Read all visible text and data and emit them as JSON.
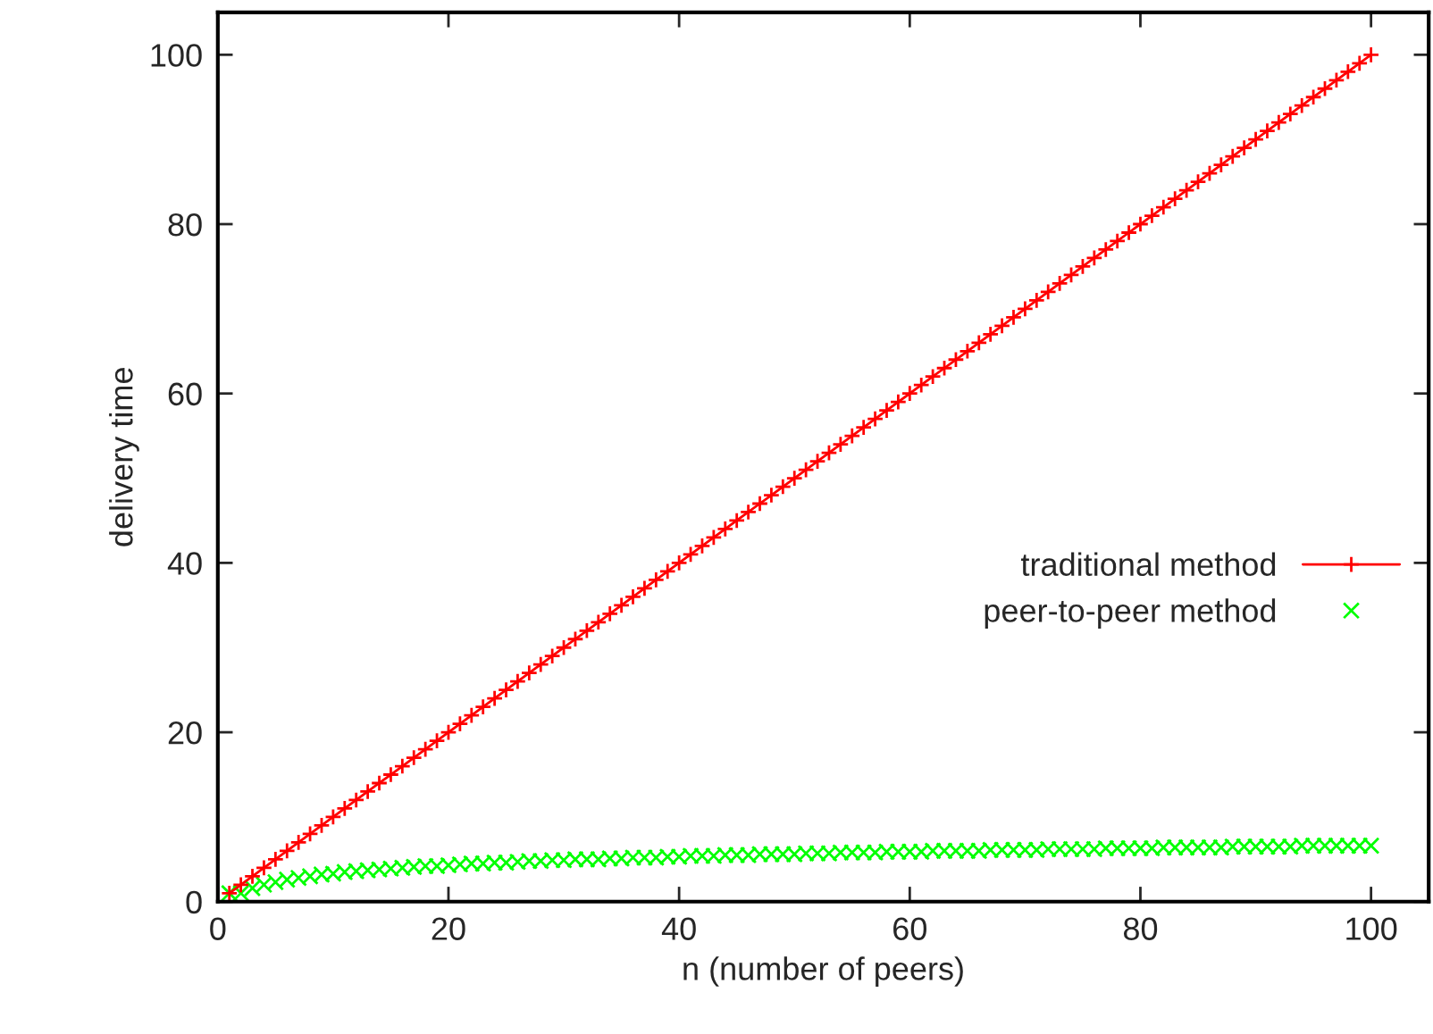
{
  "chart_data": {
    "type": "line",
    "xlabel": "n (number of peers)",
    "ylabel": "delivery time",
    "x": [
      1,
      2,
      3,
      4,
      5,
      6,
      7,
      8,
      9,
      10,
      11,
      12,
      13,
      14,
      15,
      16,
      17,
      18,
      19,
      20,
      21,
      22,
      23,
      24,
      25,
      26,
      27,
      28,
      29,
      30,
      31,
      32,
      33,
      34,
      35,
      36,
      37,
      38,
      39,
      40,
      41,
      42,
      43,
      44,
      45,
      46,
      47,
      48,
      49,
      50,
      51,
      52,
      53,
      54,
      55,
      56,
      57,
      58,
      59,
      60,
      61,
      62,
      63,
      64,
      65,
      66,
      67,
      68,
      69,
      70,
      71,
      72,
      73,
      74,
      75,
      76,
      77,
      78,
      79,
      80,
      81,
      82,
      83,
      84,
      85,
      86,
      87,
      88,
      89,
      90,
      91,
      92,
      93,
      94,
      95,
      96,
      97,
      98,
      99,
      100
    ],
    "series": [
      {
        "name": "traditional method",
        "color": "#ff0000",
        "marker": "plus",
        "line_style": "solid",
        "values": [
          1,
          2,
          3,
          4,
          5,
          6,
          7,
          8,
          9,
          10,
          11,
          12,
          13,
          14,
          15,
          16,
          17,
          18,
          19,
          20,
          21,
          22,
          23,
          24,
          25,
          26,
          27,
          28,
          29,
          30,
          31,
          32,
          33,
          34,
          35,
          36,
          37,
          38,
          39,
          40,
          41,
          42,
          43,
          44,
          45,
          46,
          47,
          48,
          49,
          50,
          51,
          52,
          53,
          54,
          55,
          56,
          57,
          58,
          59,
          60,
          61,
          62,
          63,
          64,
          65,
          66,
          67,
          68,
          69,
          70,
          71,
          72,
          73,
          74,
          75,
          76,
          77,
          78,
          79,
          80,
          81,
          82,
          83,
          84,
          85,
          86,
          87,
          88,
          89,
          90,
          91,
          92,
          93,
          94,
          95,
          96,
          97,
          98,
          99,
          100
        ]
      },
      {
        "name": "peer-to-peer method",
        "type": "scatter",
        "color": "#00ff00",
        "marker": "cross",
        "values": [
          1.0,
          1.0,
          1.6,
          2.0,
          2.3,
          2.6,
          2.8,
          3.0,
          3.2,
          3.3,
          3.5,
          3.6,
          3.7,
          3.8,
          3.9,
          4.0,
          4.1,
          4.2,
          4.2,
          4.3,
          4.4,
          4.5,
          4.5,
          4.6,
          4.6,
          4.7,
          4.8,
          4.8,
          4.9,
          4.9,
          5.0,
          5.0,
          5.0,
          5.1,
          5.1,
          5.2,
          5.2,
          5.2,
          5.3,
          5.3,
          5.4,
          5.4,
          5.4,
          5.5,
          5.5,
          5.5,
          5.6,
          5.6,
          5.6,
          5.6,
          5.7,
          5.7,
          5.7,
          5.8,
          5.8,
          5.8,
          5.8,
          5.9,
          5.9,
          5.9,
          5.9,
          6.0,
          6.0,
          6.0,
          6.0,
          6.0,
          6.1,
          6.1,
          6.1,
          6.1,
          6.1,
          6.2,
          6.2,
          6.2,
          6.2,
          6.2,
          6.3,
          6.3,
          6.3,
          6.3,
          6.3,
          6.4,
          6.4,
          6.4,
          6.4,
          6.4,
          6.4,
          6.5,
          6.5,
          6.5,
          6.5,
          6.5,
          6.5,
          6.6,
          6.6,
          6.6,
          6.6,
          6.6,
          6.6,
          6.6
        ]
      }
    ],
    "xlim": [
      0,
      105
    ],
    "xticks": [
      0,
      20,
      40,
      60,
      80,
      100
    ],
    "ylim": [
      0,
      105
    ],
    "yticks": [
      0,
      20,
      40,
      60,
      80,
      100
    ],
    "grid": false,
    "legend": "center right"
  }
}
